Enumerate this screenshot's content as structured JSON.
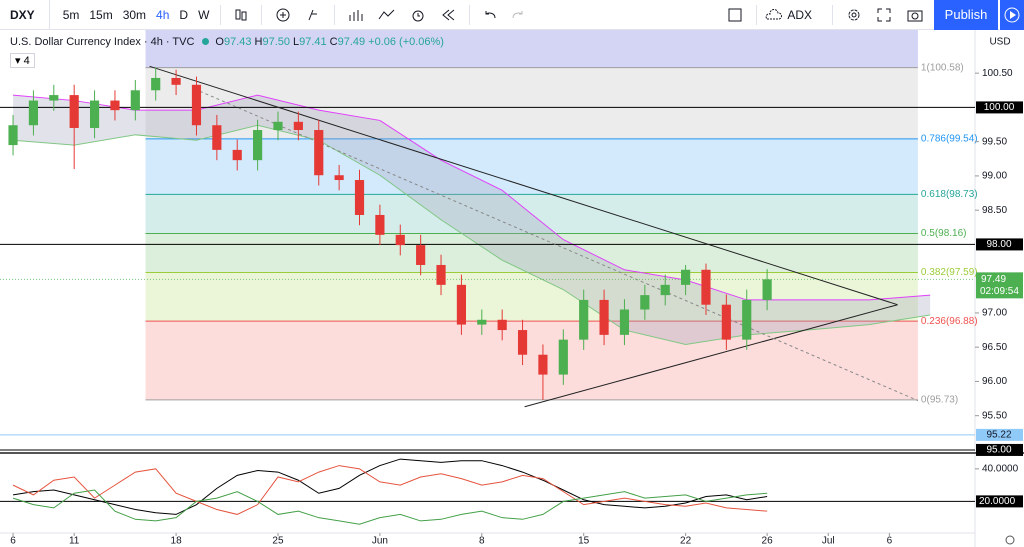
{
  "toolbar": {
    "symbol": "DXY",
    "intervals": [
      "5m",
      "15m",
      "30m",
      "4h",
      "D",
      "W"
    ],
    "active_interval_index": 3,
    "indicator": "ADX",
    "publish": "Publish"
  },
  "legend": {
    "title": "U.S. Dollar Currency Index · 4h · TVC",
    "ohlc": [
      {
        "key": "O",
        "value": "97.43"
      },
      {
        "key": "H",
        "value": "97.50"
      },
      {
        "key": "L",
        "value": "97.41"
      },
      {
        "key": "C",
        "value": "97.49"
      }
    ],
    "change": "+0.06 (+0.06%)",
    "studies": "4"
  },
  "chart_data": {
    "type": "candlestick",
    "x": [
      0,
      1,
      2,
      3,
      4,
      5,
      6,
      7,
      8,
      9,
      10,
      11,
      12,
      13,
      14,
      15,
      16,
      17,
      18,
      19,
      20,
      21,
      22,
      23,
      24,
      25,
      26,
      27,
      28,
      29,
      30,
      31,
      32,
      33,
      34,
      35,
      36,
      37
    ],
    "open": [
      99.45,
      99.74,
      100.1,
      100.18,
      99.7,
      100.1,
      99.96,
      100.25,
      100.43,
      100.33,
      99.74,
      99.38,
      99.23,
      99.67,
      99.79,
      99.67,
      99.01,
      98.94,
      98.43,
      98.14,
      97.99,
      97.7,
      97.41,
      96.83,
      96.9,
      96.75,
      96.39,
      96.1,
      96.61,
      97.19,
      96.68,
      97.05,
      97.26,
      97.41,
      97.63,
      97.12,
      96.61,
      97.19
    ],
    "high": [
      99.89,
      100.25,
      100.33,
      100.33,
      100.25,
      100.25,
      100.4,
      100.58,
      100.55,
      100.45,
      99.89,
      99.53,
      99.82,
      99.94,
      99.94,
      99.82,
      99.16,
      99.09,
      98.58,
      98.29,
      98.14,
      97.85,
      97.56,
      97.05,
      97.05,
      96.9,
      96.54,
      96.76,
      97.34,
      97.34,
      97.2,
      97.41,
      97.56,
      97.7,
      97.72,
      97.27,
      97.34,
      97.64
    ],
    "low": [
      99.3,
      99.59,
      99.95,
      99.1,
      99.55,
      99.81,
      99.81,
      100.1,
      100.18,
      99.59,
      99.23,
      99.08,
      99.08,
      99.52,
      99.52,
      98.86,
      98.79,
      98.28,
      97.99,
      97.84,
      97.55,
      97.26,
      96.68,
      96.68,
      96.6,
      96.24,
      95.73,
      95.95,
      96.46,
      96.53,
      96.53,
      96.9,
      97.11,
      97.26,
      96.97,
      96.46,
      96.46,
      97.04
    ],
    "close": [
      99.74,
      100.1,
      100.18,
      99.7,
      100.1,
      99.96,
      100.25,
      100.43,
      100.33,
      99.74,
      99.38,
      99.23,
      99.67,
      99.79,
      99.67,
      99.01,
      98.94,
      98.43,
      98.14,
      97.99,
      97.7,
      97.41,
      96.83,
      96.9,
      96.75,
      96.39,
      96.1,
      96.61,
      97.19,
      96.68,
      97.05,
      97.26,
      97.41,
      97.63,
      97.12,
      96.61,
      97.19,
      97.49
    ],
    "up_color": "#4caf50",
    "down_color": "#e53935",
    "xlim": [
      -0.64,
      47.2
    ],
    "xticks": [
      {
        "value": 0,
        "label": "6"
      },
      {
        "value": 3,
        "label": "11"
      },
      {
        "value": 8,
        "label": "18"
      },
      {
        "value": 13,
        "label": "25"
      },
      {
        "value": 18,
        "label": "Jun"
      },
      {
        "value": 23,
        "label": "8"
      },
      {
        "value": 28,
        "label": "15"
      },
      {
        "value": 33,
        "label": "22"
      },
      {
        "value": 37,
        "label": "26"
      },
      {
        "value": 40,
        "label": "Jul"
      },
      {
        "value": 43,
        "label": "6"
      }
    ],
    "ylim": [
      94.97,
      101.13
    ],
    "yticks": [
      {
        "value": 95.5,
        "label": "95.50"
      },
      {
        "value": 96,
        "label": "96.00"
      },
      {
        "value": 96.5,
        "label": "96.50"
      },
      {
        "value": 97,
        "label": "97.00"
      },
      {
        "value": 98.5,
        "label": "98.50"
      },
      {
        "value": 99,
        "label": "99.00"
      },
      {
        "value": 99.5,
        "label": "99.50"
      },
      {
        "value": 100.5,
        "label": "100.50"
      }
    ],
    "currency": "USD",
    "hlines": [
      {
        "value": 100,
        "label": "100.00"
      },
      {
        "value": 98,
        "label": "98.00"
      },
      {
        "value": 95,
        "label": "95.00"
      }
    ],
    "alert": {
      "value": 95.22,
      "label": "95.22",
      "color": "#90caf9"
    },
    "last_price": {
      "value": 97.49,
      "label": "97.49",
      "color": "#4caf50",
      "countdown": "02:09:54"
    },
    "fib": {
      "x_range": [
        6.5,
        44.4
      ],
      "above_color": "#c9c9f2",
      "levels": [
        {
          "value": 100.58,
          "label": "1(100.58)",
          "color": "#9e9e9e"
        },
        {
          "value": 99.54,
          "label": "0.786(99.54)",
          "color": "#2196f3"
        },
        {
          "value": 98.73,
          "label": "0.618(98.73)",
          "color": "#26a69a"
        },
        {
          "value": 98.16,
          "label": "0.5(98.16)",
          "color": "#4caf50"
        },
        {
          "value": 97.59,
          "label": "0.382(97.59)",
          "color": "#9ccc3a"
        },
        {
          "value": 96.88,
          "label": "0.236(96.88)",
          "color": "#ef5350"
        },
        {
          "value": 95.73,
          "label": "0(95.73)",
          "color": "#9e9e9e"
        }
      ]
    },
    "cloud": {
      "x": [
        0,
        3,
        6,
        9,
        12,
        15,
        18,
        21,
        24,
        27,
        30,
        33,
        36,
        39,
        42,
        45
      ],
      "span_a": [
        100.18,
        100.1,
        99.96,
        99.96,
        100.18,
        99.96,
        99.81,
        99.23,
        98.79,
        98.07,
        97.63,
        97.48,
        97.19,
        97.19,
        97.19,
        97.26
      ],
      "span_b": [
        99.52,
        99.45,
        99.6,
        99.52,
        99.74,
        99.52,
        99.01,
        98.36,
        97.77,
        97.34,
        96.75,
        96.54,
        96.68,
        96.75,
        96.83,
        96.97
      ],
      "color_a": "#e040fb",
      "color_b": "#81c784",
      "fill": "#a0a0b8"
    },
    "trendlines": [
      {
        "points": [
          [
            6.7,
            100.6
          ],
          [
            43.4,
            97.12
          ]
        ],
        "dashed": false
      },
      {
        "points": [
          [
            25.1,
            95.63
          ],
          [
            43.4,
            97.12
          ]
        ],
        "dashed": false
      },
      {
        "points": [
          [
            8.9,
            100.27
          ],
          [
            44.4,
            95.72
          ]
        ],
        "dashed": true
      }
    ],
    "indicator": {
      "ylim": [
        1.2,
        48.5
      ],
      "yticks": [
        {
          "value": 40,
          "label": "40.0000"
        }
      ],
      "level": {
        "value": 20,
        "label": "20.0000"
      },
      "series": [
        {
          "color": "#000000",
          "values": [
            24,
            26,
            27,
            24,
            21,
            18,
            15,
            13,
            12,
            18,
            28,
            36,
            39,
            38,
            33,
            25,
            28,
            36,
            42,
            46,
            45,
            44,
            45,
            45,
            42,
            38,
            33,
            27,
            21,
            18,
            17,
            16,
            17,
            19,
            23,
            24,
            21,
            23
          ]
        },
        {
          "color": "#e5533d",
          "values": [
            30,
            24,
            33,
            35,
            22,
            30,
            38,
            40,
            25,
            20,
            15,
            12,
            18,
            35,
            32,
            38,
            42,
            40,
            32,
            30,
            35,
            37,
            34,
            30,
            32,
            36,
            34,
            26,
            18,
            20,
            22,
            20,
            18,
            17,
            19,
            16,
            15,
            14
          ]
        },
        {
          "color": "#43a047",
          "values": [
            22,
            18,
            16,
            25,
            27,
            14,
            9,
            8,
            10,
            20,
            22,
            26,
            20,
            12,
            14,
            10,
            8,
            6,
            10,
            12,
            8,
            9,
            12,
            14,
            10,
            9,
            12,
            20,
            22,
            24,
            26,
            22,
            23,
            24,
            20,
            22,
            24,
            25
          ]
        }
      ]
    }
  }
}
